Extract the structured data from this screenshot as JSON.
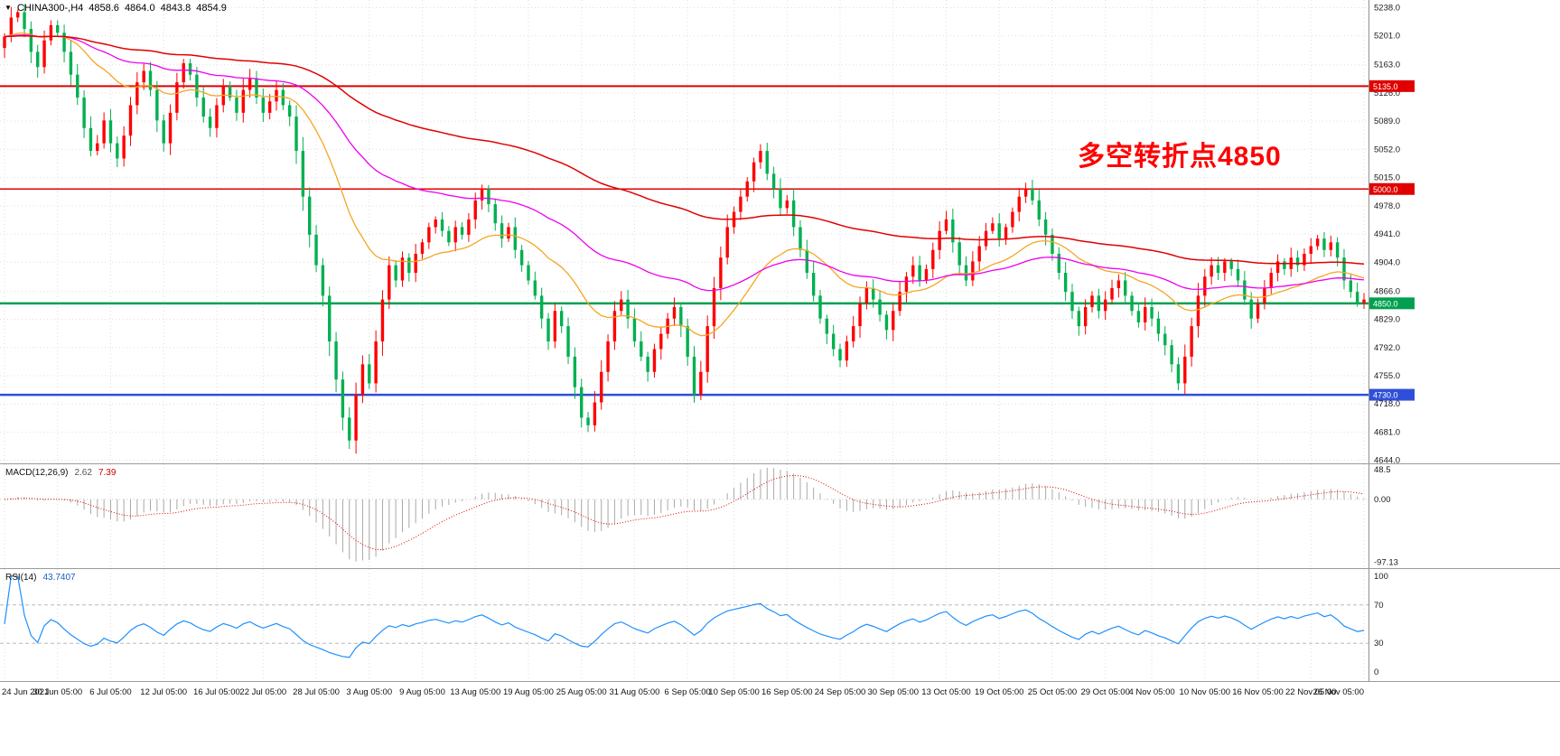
{
  "header": {
    "symbol": "CHINA300-,H4",
    "open": "4858.6",
    "high": "4864.0",
    "low": "4843.8",
    "close": "4854.9"
  },
  "annotation": {
    "text": "多空转折点4850",
    "color": "#ff0000"
  },
  "chart_data": {
    "type": "candlestick",
    "title": "CHINA300- H4 with MACD and RSI",
    "timeframe": "H4",
    "up_color": "#ff0000",
    "down_color": "#00b050",
    "grid": true,
    "price_range": [
      4640,
      5248
    ],
    "price_axis_labels": [
      "5238.0",
      "5201.0",
      "5163.0",
      "5126.0",
      "5089.0",
      "5052.0",
      "5015.0",
      "4978.0",
      "4941.0",
      "4904.0",
      "4866.0",
      "4829.0",
      "4792.0",
      "4755.0",
      "4718.0",
      "4681.0",
      "4644.0"
    ],
    "hlines": [
      {
        "value": 5135.0,
        "label": "5135.0",
        "color": "#e00000",
        "width": 2
      },
      {
        "value": 5000.0,
        "label": "5000.0",
        "color": "#e00000",
        "width": 1.5
      },
      {
        "value": 4850.0,
        "label": "4850.0",
        "color": "#00a050",
        "width": 2.5
      },
      {
        "value": 4730.0,
        "label": "4730.0",
        "color": "#2f4fd8",
        "width": 2.5
      }
    ],
    "time_labels": [
      "24 Jun 2021",
      "30 Jun 05:00",
      "6 Jul 05:00",
      "12 Jul 05:00",
      "16 Jul 05:00",
      "22 Jul 05:00",
      "28 Jul 05:00",
      "3 Aug 05:00",
      "9 Aug 05:00",
      "13 Aug 05:00",
      "19 Aug 05:00",
      "25 Aug 05:00",
      "31 Aug 05:00",
      "6 Sep 05:00",
      "10 Sep 05:00",
      "16 Sep 05:00",
      "24 Sep 05:00",
      "30 Sep 05:00",
      "13 Oct 05:00",
      "19 Oct 05:00",
      "25 Oct 05:00",
      "29 Oct 05:00",
      "4 Nov 05:00",
      "10 Nov 05:00",
      "16 Nov 05:00",
      "22 Nov 05:00",
      "26 Nov 05:00"
    ],
    "first_open": 5185,
    "closes": [
      5200,
      5225,
      5232,
      5210,
      5180,
      5160,
      5195,
      5215,
      5205,
      5180,
      5150,
      5120,
      5080,
      5050,
      5060,
      5090,
      5060,
      5040,
      5070,
      5110,
      5140,
      5155,
      5130,
      5090,
      5060,
      5100,
      5140,
      5165,
      5150,
      5120,
      5095,
      5080,
      5110,
      5135,
      5120,
      5100,
      5130,
      5145,
      5120,
      5100,
      5115,
      5130,
      5110,
      5095,
      5050,
      4990,
      4940,
      4900,
      4860,
      4800,
      4750,
      4700,
      4670,
      4730,
      4770,
      4745,
      4800,
      4855,
      4900,
      4880,
      4910,
      4890,
      4915,
      4930,
      4950,
      4960,
      4945,
      4930,
      4950,
      4940,
      4960,
      4985,
      5000,
      4980,
      4955,
      4935,
      4950,
      4920,
      4900,
      4880,
      4860,
      4830,
      4800,
      4840,
      4820,
      4780,
      4740,
      4700,
      4690,
      4720,
      4760,
      4800,
      4840,
      4855,
      4830,
      4800,
      4780,
      4760,
      4790,
      4810,
      4830,
      4845,
      4820,
      4780,
      4730,
      4760,
      4820,
      4870,
      4910,
      4950,
      4970,
      4990,
      5010,
      5035,
      5050,
      5020,
      5000,
      4975,
      4985,
      4950,
      4920,
      4890,
      4860,
      4830,
      4810,
      4790,
      4775,
      4800,
      4820,
      4850,
      4870,
      4855,
      4835,
      4815,
      4840,
      4865,
      4885,
      4900,
      4880,
      4895,
      4920,
      4945,
      4960,
      4930,
      4900,
      4880,
      4905,
      4925,
      4945,
      4955,
      4935,
      4950,
      4970,
      4990,
      5000,
      4985,
      4960,
      4940,
      4915,
      4890,
      4865,
      4840,
      4820,
      4845,
      4860,
      4840,
      4855,
      4870,
      4880,
      4860,
      4840,
      4825,
      4845,
      4830,
      4810,
      4795,
      4770,
      4745,
      4780,
      4820,
      4860,
      4885,
      4900,
      4890,
      4905,
      4895,
      4880,
      4855,
      4830,
      4850,
      4870,
      4890,
      4905,
      4895,
      4910,
      4900,
      4915,
      4925,
      4935,
      4920,
      4930,
      4910,
      4880,
      4865,
      4850,
      4855
    ],
    "overlays": [
      {
        "name": "ma-fast",
        "period": 25,
        "color": "#f5a623",
        "width": 1.3
      },
      {
        "name": "ma-mid",
        "period": 60,
        "color": "#ee00ee",
        "width": 1.3
      },
      {
        "name": "ma-slow",
        "period": 130,
        "color": "#e00000",
        "width": 1.5
      }
    ],
    "macd": {
      "label": "MACD(12,26,9)",
      "value_main": "2.62",
      "value_signal": "7.39",
      "fast": 12,
      "slow": 26,
      "signal": 9,
      "axis_labels": [
        "48.5",
        "0.00",
        "-97.13"
      ],
      "axis_values": [
        48.5,
        0,
        -97.13
      ],
      "hist_color": "#a8a8a8",
      "signal_color": "#e00000"
    },
    "rsi": {
      "label": "RSI(14)",
      "value": "43.7407",
      "period": 14,
      "axis_labels": [
        "100",
        "70",
        "30",
        "0"
      ],
      "axis_values": [
        100,
        70,
        30,
        0
      ],
      "levels": [
        70,
        30
      ],
      "color": "#1e90ff",
      "range": [
        0,
        100
      ]
    }
  }
}
